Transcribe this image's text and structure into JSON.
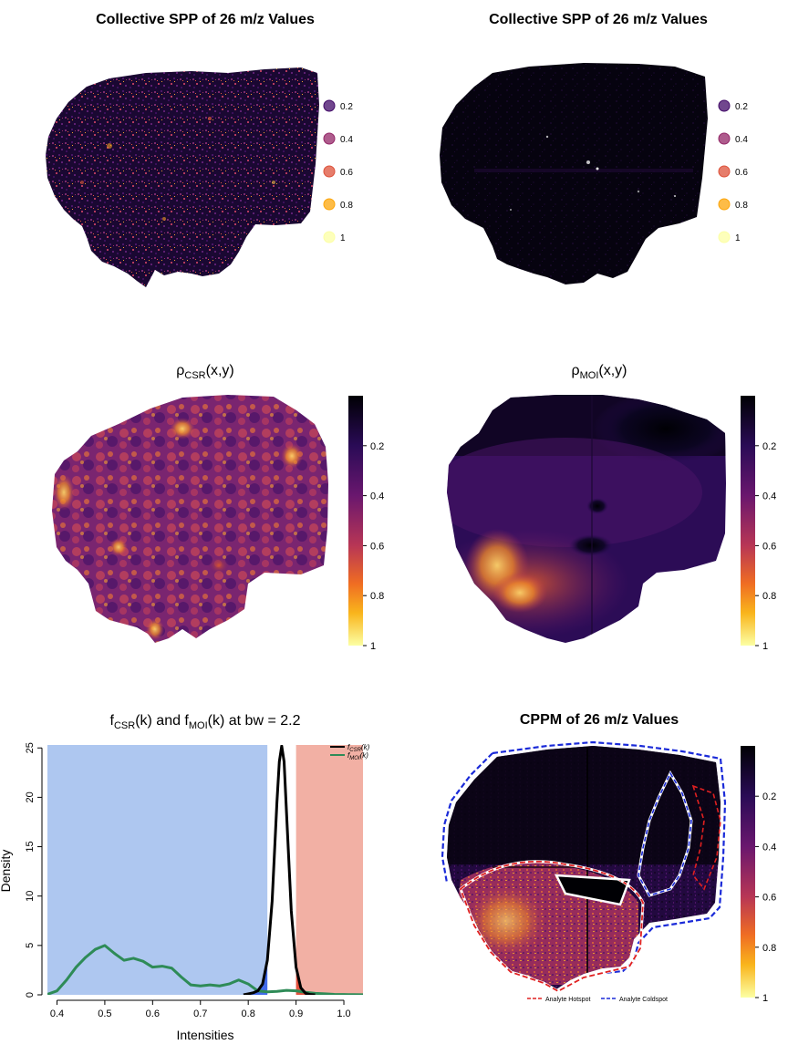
{
  "chart_data": [
    {
      "type": "heatmap",
      "title": "Collective SPP of 26 m/z Values",
      "legend": {
        "position": "right",
        "labels": [
          "0.2",
          "0.4",
          "0.6",
          "0.8",
          "1"
        ]
      },
      "colormap": [
        "#000004",
        "#420a68",
        "#932667",
        "#dd513a",
        "#fca50a",
        "#fcffa4"
      ]
    },
    {
      "type": "heatmap",
      "title": "Collective SPP of 26 m/z Values",
      "legend": {
        "position": "right",
        "labels": [
          "0.2",
          "0.4",
          "0.6",
          "0.8",
          "1"
        ]
      },
      "colormap": [
        "#000004",
        "#420a68",
        "#932667",
        "#dd513a",
        "#fca50a",
        "#fcffa4"
      ]
    },
    {
      "type": "heatmap",
      "title": {
        "base": "ρ",
        "sub": "CSR",
        "rest": "(x,y)"
      },
      "colorbar": {
        "position": "right",
        "labels": [
          "0.2",
          "0.4",
          "0.6",
          "0.8",
          "1"
        ]
      }
    },
    {
      "type": "heatmap",
      "title": {
        "base": "ρ",
        "sub": "MOI",
        "rest": "(x,y)"
      },
      "colorbar": {
        "position": "right",
        "labels": [
          "0.2",
          "0.4",
          "0.6",
          "0.8",
          "1"
        ]
      }
    },
    {
      "type": "line",
      "title": {
        "p1": "f",
        "s1": "CSR",
        "p2": "(k) and f",
        "s2": "MOI",
        "p3": "(k) at bw = 2.2"
      },
      "xlabel": "Intensities",
      "ylabel": "Density",
      "xlim": [
        0.38,
        1.04
      ],
      "ylim": [
        0,
        25.3
      ],
      "xticks": [
        "0.4",
        "0.5",
        "0.6",
        "0.7",
        "0.8",
        "0.9",
        "1.0"
      ],
      "yticks": [
        "0",
        "5",
        "10",
        "15",
        "20",
        "25"
      ],
      "regions": [
        {
          "from": 0.38,
          "to": 0.84,
          "color": "#aec7f0"
        },
        {
          "from": 0.9,
          "to": 1.04,
          "color": "#f2b0a4"
        }
      ],
      "legend": {
        "position": "top-right",
        "entries": [
          {
            "f": "f",
            "s": "CSR",
            "k": "(k)",
            "color": "#000000"
          },
          {
            "f": "f",
            "s": "MOI",
            "k": "(k)",
            "color": "#2e8b57"
          }
        ]
      },
      "series": [
        {
          "color": "#000000",
          "x": [
            0.79,
            0.8,
            0.81,
            0.82,
            0.83,
            0.84,
            0.85,
            0.86,
            0.865,
            0.87,
            0.875,
            0.88,
            0.89,
            0.9,
            0.91,
            0.92,
            0.93,
            0.94
          ],
          "y": [
            0,
            0.1,
            0.2,
            0.4,
            1.1,
            3.5,
            9.5,
            19.5,
            23.6,
            25.2,
            23.6,
            18.5,
            8.5,
            2.8,
            0.7,
            0.15,
            0.03,
            0
          ]
        },
        {
          "color": "#2e8b57",
          "x": [
            0.38,
            0.4,
            0.42,
            0.44,
            0.46,
            0.48,
            0.5,
            0.52,
            0.54,
            0.56,
            0.58,
            0.6,
            0.62,
            0.64,
            0.66,
            0.68,
            0.7,
            0.72,
            0.74,
            0.76,
            0.78,
            0.8,
            0.82,
            0.84,
            0.86,
            0.88,
            0.9,
            0.92,
            0.94,
            0.96,
            0.98,
            1.0,
            1.02,
            1.04
          ],
          "y": [
            0.05,
            0.4,
            1.5,
            2.8,
            3.8,
            4.6,
            5.0,
            4.2,
            3.5,
            3.7,
            3.4,
            2.8,
            2.9,
            2.7,
            1.8,
            1.0,
            0.9,
            1.0,
            0.9,
            1.1,
            1.5,
            1.1,
            0.4,
            0.3,
            0.35,
            0.45,
            0.4,
            0.25,
            0.15,
            0.1,
            0.05,
            0.03,
            0.02,
            0.01
          ]
        }
      ]
    },
    {
      "type": "heatmap",
      "title": "CPPM of 26 m/z Values",
      "colorbar": {
        "position": "right",
        "labels": [
          "0.2",
          "0.4",
          "0.6",
          "0.8",
          "1"
        ]
      },
      "legend": {
        "position": "bottom",
        "entries": [
          {
            "label": "Analyte Hotspot",
            "color": "#e02020"
          },
          {
            "label": "Analyte Coldspot",
            "color": "#1a2ad8"
          }
        ]
      }
    }
  ]
}
